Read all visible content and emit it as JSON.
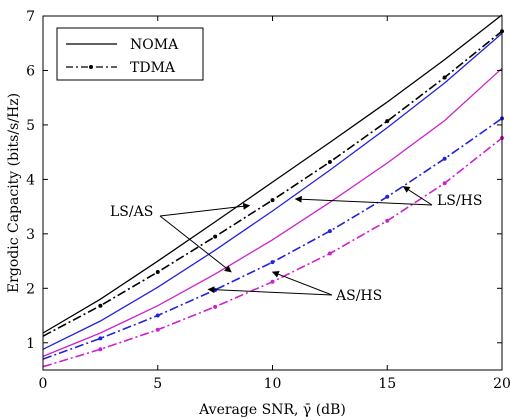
{
  "chart_data": {
    "type": "line",
    "title": "",
    "xlabel": "Average SNR, γ̄ (dB)",
    "ylabel": "Ergodic Capacity (bits/s/Hz)",
    "xlim": [
      0,
      20
    ],
    "ylim": [
      0.5,
      7
    ],
    "xticks": [
      "0",
      "5",
      "10",
      "15",
      "20"
    ],
    "yticks": [
      "1",
      "2",
      "3",
      "4",
      "5",
      "6",
      "7"
    ],
    "grid": false,
    "legend": {
      "placement": "top-left",
      "entries": [
        {
          "label": "NOMA",
          "style": "solid"
        },
        {
          "label": "TDMA",
          "style": "dash-dot"
        }
      ]
    },
    "x": [
      0,
      2.5,
      5,
      7.5,
      10,
      12.5,
      15,
      17.5,
      20
    ],
    "series": [
      {
        "scheme": "NOMA",
        "group": "LS/AS",
        "color": "#000000",
        "style": "solid",
        "values": [
          1.18,
          1.8,
          2.5,
          3.22,
          3.95,
          4.68,
          5.42,
          6.2,
          7.02
        ]
      },
      {
        "scheme": "TDMA",
        "group": "LS/AS",
        "color": "#000000",
        "style": "dash-dot",
        "values": [
          1.12,
          1.68,
          2.3,
          2.95,
          3.62,
          4.32,
          5.07,
          5.87,
          6.72
        ]
      },
      {
        "scheme": "NOMA",
        "group": "LS/HS",
        "color": "#2222dd",
        "style": "solid",
        "values": [
          0.88,
          1.4,
          2.02,
          2.7,
          3.42,
          4.17,
          4.95,
          5.77,
          6.68
        ]
      },
      {
        "scheme": "TDMA",
        "group": "LS/HS",
        "color": "#2222dd",
        "style": "dash-dot",
        "values": [
          0.7,
          1.08,
          1.5,
          1.97,
          2.48,
          3.05,
          3.68,
          4.38,
          5.12
        ]
      },
      {
        "scheme": "NOMA",
        "group": "AS/HS",
        "color": "#cc22cc",
        "style": "solid",
        "values": [
          0.75,
          1.18,
          1.68,
          2.26,
          2.89,
          3.58,
          4.3,
          5.08,
          6.04
        ]
      },
      {
        "scheme": "TDMA",
        "group": "AS/HS",
        "color": "#cc22cc",
        "style": "dash-dot",
        "values": [
          0.56,
          0.88,
          1.24,
          1.66,
          2.12,
          2.64,
          3.24,
          3.93,
          4.76
        ]
      }
    ],
    "annotations": [
      {
        "text": "LS/AS",
        "arrows": [
          {
            "x": 9.0,
            "y": 3.52
          },
          {
            "x": 8.2,
            "y": 2.3
          }
        ]
      },
      {
        "text": "LS/HS",
        "arrows": [
          {
            "x": 11.0,
            "y": 3.64
          },
          {
            "x": 15.7,
            "y": 3.87
          }
        ]
      },
      {
        "text": "AS/HS",
        "arrows": [
          {
            "x": 7.2,
            "y": 1.98
          },
          {
            "x": 10.0,
            "y": 2.3
          }
        ]
      }
    ]
  }
}
